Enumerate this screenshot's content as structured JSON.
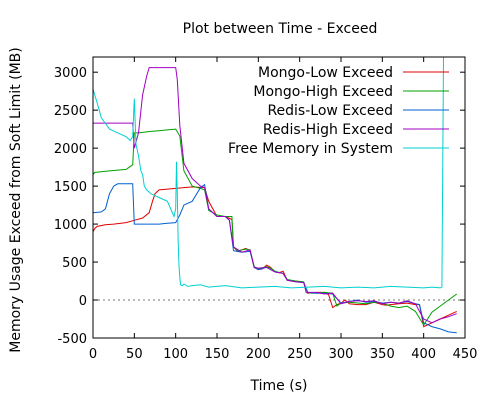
{
  "chart_data": {
    "type": "line",
    "title": "Plot between Time - Exceed",
    "xlabel": "Time (s)",
    "ylabel": "Memory Usage Exceed from Soft Limit (MB)",
    "xlim": [
      0,
      450
    ],
    "ylim": [
      -500,
      3200
    ],
    "xticks": [
      0,
      50,
      100,
      150,
      200,
      250,
      300,
      350,
      400,
      450
    ],
    "yticks": [
      -500,
      0,
      500,
      1000,
      1500,
      2000,
      2500,
      3000
    ],
    "grid": false,
    "legend_position": "top-right",
    "zero_line": true,
    "series": [
      {
        "name": "Mongo-Low Exceed",
        "color": "#e00000",
        "x": [
          0,
          2,
          5,
          15,
          25,
          40,
          50,
          60,
          68,
          72,
          75,
          80,
          100,
          120,
          135,
          140,
          150,
          160,
          168,
          170,
          175,
          180,
          185,
          190,
          195,
          200,
          205,
          210,
          215,
          220,
          225,
          230,
          235,
          245,
          255,
          258,
          260,
          270,
          280,
          285,
          290,
          295,
          300,
          305,
          310,
          320,
          330,
          340,
          350,
          355,
          360,
          370,
          380,
          390,
          395,
          400,
          410,
          420,
          430,
          440
        ],
        "y": [
          900,
          940,
          970,
          990,
          1000,
          1020,
          1050,
          1080,
          1150,
          1300,
          1400,
          1450,
          1470,
          1490,
          1480,
          1300,
          1100,
          1100,
          1060,
          700,
          640,
          660,
          680,
          650,
          430,
          400,
          410,
          460,
          430,
          370,
          360,
          380,
          260,
          250,
          230,
          100,
          90,
          100,
          100,
          70,
          -100,
          -60,
          -40,
          0,
          -50,
          -60,
          -60,
          -30,
          -60,
          -70,
          -60,
          -50,
          -40,
          -60,
          -60,
          -350,
          -300,
          -250,
          -200,
          -150
        ]
      },
      {
        "name": "Mongo-High Exceed",
        "color": "#00a000",
        "x": [
          0,
          2,
          10,
          20,
          40,
          48,
          50,
          55,
          70,
          80,
          90,
          100,
          105,
          110,
          120,
          130,
          135,
          140,
          150,
          160,
          168,
          170,
          175,
          185,
          190,
          195,
          200,
          210,
          215,
          220,
          230,
          235,
          245,
          255,
          258,
          265,
          280,
          290,
          295,
          300,
          310,
          330,
          340,
          350,
          360,
          370,
          380,
          390,
          400,
          410,
          420,
          430,
          440
        ],
        "y": [
          1650,
          1680,
          1690,
          1700,
          1720,
          1780,
          2200,
          2200,
          2220,
          2230,
          2240,
          2250,
          2160,
          1700,
          1500,
          1470,
          1450,
          1180,
          1120,
          1100,
          1100,
          700,
          650,
          670,
          660,
          440,
          410,
          440,
          420,
          380,
          350,
          270,
          250,
          240,
          100,
          90,
          100,
          90,
          -80,
          -40,
          -30,
          -50,
          -30,
          -40,
          -80,
          -100,
          -80,
          -150,
          -330,
          -160,
          -80,
          0,
          80
        ]
      },
      {
        "name": "Redis-Low Exceed",
        "color": "#0060d0",
        "x": [
          0,
          10,
          15,
          20,
          25,
          30,
          40,
          48,
          50,
          60,
          80,
          90,
          100,
          105,
          110,
          120,
          130,
          135,
          140,
          150,
          160,
          165,
          170,
          180,
          190,
          195,
          200,
          210,
          215,
          220,
          230,
          235,
          245,
          255,
          260,
          270,
          280,
          290,
          300,
          310,
          320,
          330,
          340,
          350,
          360,
          370,
          380,
          390,
          395,
          400,
          410,
          420,
          430,
          440
        ],
        "y": [
          1150,
          1160,
          1200,
          1400,
          1500,
          1530,
          1530,
          1530,
          1000,
          1000,
          1000,
          1010,
          1020,
          1120,
          1250,
          1300,
          1480,
          1520,
          1200,
          1100,
          1100,
          1050,
          650,
          630,
          640,
          430,
          400,
          430,
          400,
          370,
          350,
          260,
          240,
          230,
          100,
          90,
          90,
          80,
          -40,
          -20,
          0,
          -30,
          -20,
          -40,
          -30,
          -40,
          -20,
          -50,
          -60,
          -300,
          -350,
          -380,
          -420,
          -430
        ]
      },
      {
        "name": "Redis-High Exceed",
        "color": "#a000c0",
        "x": [
          0,
          10,
          20,
          30,
          40,
          48,
          50,
          55,
          60,
          65,
          68,
          100,
          102,
          105,
          110,
          120,
          130,
          135,
          140,
          150,
          160,
          165,
          170,
          180,
          190,
          195,
          200,
          210,
          215,
          220,
          230,
          235,
          245,
          255,
          258,
          270,
          280,
          290,
          300,
          310,
          320,
          330,
          340,
          350,
          360,
          370,
          380,
          390,
          400,
          410,
          420,
          430,
          440
        ],
        "y": [
          2330,
          2330,
          2330,
          2330,
          2330,
          2330,
          2000,
          2200,
          2700,
          2950,
          3060,
          3060,
          2900,
          2300,
          1800,
          1600,
          1500,
          1480,
          1200,
          1100,
          1100,
          1050,
          700,
          630,
          660,
          430,
          420,
          430,
          400,
          370,
          350,
          260,
          240,
          230,
          100,
          100,
          80,
          90,
          -50,
          -20,
          -10,
          -20,
          -10,
          -50,
          -30,
          -40,
          -10,
          -50,
          -250,
          -300,
          -250,
          -220,
          -180
        ]
      },
      {
        "name": "Free Memory in System",
        "color": "#00d0d0",
        "x": [
          0,
          2,
          5,
          10,
          20,
          30,
          40,
          45,
          48,
          50,
          52,
          55,
          58,
          60,
          62,
          65,
          70,
          80,
          90,
          98,
          100,
          101,
          102,
          103,
          104,
          105,
          106,
          108,
          110,
          115,
          120,
          130,
          140,
          150,
          160,
          180,
          200,
          220,
          240,
          260,
          280,
          300,
          320,
          340,
          360,
          380,
          400,
          410,
          420,
          422,
          424
        ],
        "y": [
          2780,
          2700,
          2600,
          2400,
          2250,
          2200,
          2150,
          2100,
          2150,
          2650,
          2050,
          1900,
          1700,
          1650,
          1500,
          1450,
          1400,
          1350,
          1300,
          1100,
          1200,
          1820,
          1400,
          800,
          450,
          300,
          200,
          190,
          210,
          180,
          190,
          200,
          170,
          180,
          190,
          160,
          170,
          180,
          160,
          170,
          180,
          160,
          170,
          160,
          180,
          170,
          160,
          170,
          160,
          170,
          3200
        ]
      }
    ]
  }
}
